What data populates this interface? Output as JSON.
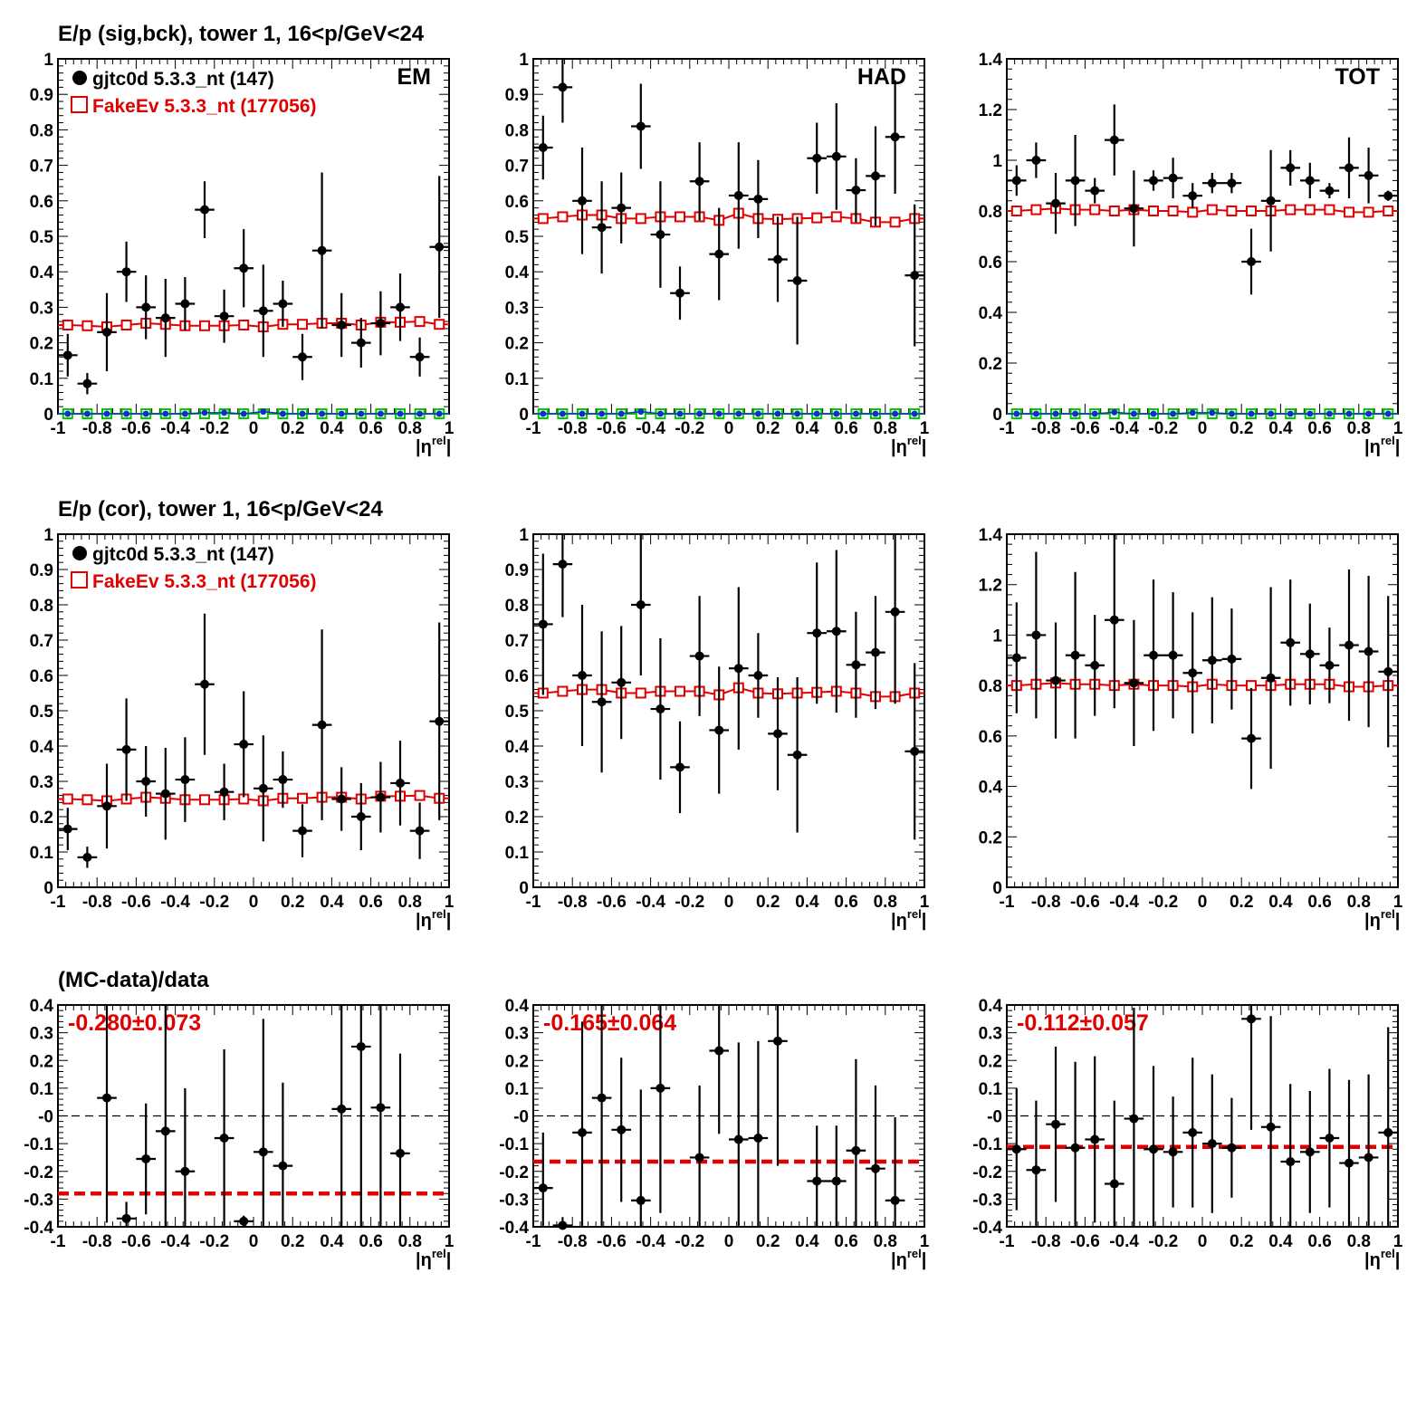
{
  "colors": {
    "data": "#000000",
    "mc": "#e00000",
    "green": "#00cc00",
    "blue": "#1030c0",
    "fit": "#e00000"
  },
  "x_ticks": [
    "-1",
    "-0.8",
    "-0.6",
    "-0.4",
    "-0.2",
    "0",
    "0.2",
    "0.4",
    "0.6",
    "0.8",
    "1"
  ],
  "xlabel_base": "|η",
  "xlabel_sup": "rel",
  "xlabel_end": "|",
  "chart_data": [
    {
      "type": "scatter",
      "row": 0,
      "col": 0,
      "title": "E/p (sig,bck), tower 1, 16<p/GeV<24",
      "corner_label": "EM",
      "legend": [
        "gjtc0d 5.3.3_nt (147)",
        "FakeEv 5.3.3_nt (177056)"
      ],
      "ylim": [
        0,
        1
      ],
      "y_ticks": [
        "0",
        "0.1",
        "0.2",
        "0.3",
        "0.4",
        "0.5",
        "0.6",
        "0.7",
        "0.8",
        "0.9",
        "1"
      ],
      "x": [
        -0.95,
        -0.85,
        -0.75,
        -0.65,
        -0.55,
        -0.45,
        -0.35,
        -0.25,
        -0.15,
        -0.05,
        0.05,
        0.15,
        0.25,
        0.35,
        0.45,
        0.55,
        0.65,
        0.75,
        0.85,
        0.95
      ],
      "data": [
        0.165,
        0.085,
        0.23,
        0.4,
        0.3,
        0.27,
        0.31,
        0.575,
        0.275,
        0.41,
        0.29,
        0.31,
        0.16,
        0.46,
        0.25,
        0.2,
        0.255,
        0.3,
        0.16,
        0.47
      ],
      "data_err": [
        0.06,
        0.03,
        0.11,
        0.085,
        0.09,
        0.11,
        0.075,
        0.08,
        0.075,
        0.11,
        0.13,
        0.065,
        0.065,
        0.22,
        0.09,
        0.07,
        0.09,
        0.095,
        0.055,
        0.2
      ],
      "mc": [
        0.25,
        0.248,
        0.245,
        0.25,
        0.255,
        0.252,
        0.248,
        0.248,
        0.248,
        0.25,
        0.245,
        0.252,
        0.252,
        0.255,
        0.255,
        0.25,
        0.258,
        0.258,
        0.26,
        0.252
      ],
      "green": [
        0,
        0,
        0,
        0,
        0,
        0,
        0,
        0,
        0,
        0,
        0,
        0,
        0,
        0,
        0,
        0,
        0,
        0,
        0,
        0
      ],
      "blue": [
        0,
        0,
        0,
        0,
        0,
        0,
        0,
        0.003,
        0.003,
        0,
        0.006,
        0,
        0,
        0,
        0,
        0,
        0,
        0,
        0,
        0
      ]
    },
    {
      "type": "scatter",
      "row": 0,
      "col": 1,
      "corner_label": "HAD",
      "ylim": [
        0,
        1
      ],
      "y_ticks": [
        "0",
        "0.1",
        "0.2",
        "0.3",
        "0.4",
        "0.5",
        "0.6",
        "0.7",
        "0.8",
        "0.9",
        "1"
      ],
      "x": [
        -0.95,
        -0.85,
        -0.75,
        -0.65,
        -0.55,
        -0.45,
        -0.35,
        -0.25,
        -0.15,
        -0.05,
        0.05,
        0.15,
        0.25,
        0.35,
        0.45,
        0.55,
        0.65,
        0.75,
        0.85,
        0.95
      ],
      "data": [
        0.75,
        0.92,
        0.6,
        0.525,
        0.58,
        0.81,
        0.505,
        0.34,
        0.655,
        0.45,
        0.615,
        0.605,
        0.435,
        0.375,
        0.72,
        0.725,
        0.63,
        0.67,
        0.78,
        0.39
      ],
      "data_err": [
        0.09,
        0.1,
        0.15,
        0.13,
        0.1,
        0.12,
        0.15,
        0.075,
        0.11,
        0.13,
        0.15,
        0.11,
        0.12,
        0.18,
        0.1,
        0.15,
        0.09,
        0.14,
        0.16,
        0.2
      ],
      "mc": [
        0.55,
        0.555,
        0.56,
        0.56,
        0.55,
        0.55,
        0.555,
        0.555,
        0.555,
        0.545,
        0.565,
        0.55,
        0.548,
        0.55,
        0.552,
        0.555,
        0.55,
        0.54,
        0.54,
        0.55
      ],
      "green": [
        0,
        0,
        0,
        0,
        0,
        0,
        0,
        0,
        0,
        0,
        0,
        0,
        0,
        0,
        0,
        0,
        0,
        0,
        0,
        0
      ],
      "blue": [
        0,
        0,
        0,
        0,
        0,
        0.006,
        0,
        0,
        0,
        0,
        0,
        0,
        0,
        0,
        0,
        0,
        0,
        0,
        0,
        0
      ]
    },
    {
      "type": "scatter",
      "row": 0,
      "col": 2,
      "corner_label": "TOT",
      "ylim": [
        0,
        1.4
      ],
      "y_ticks": [
        "0",
        "0.2",
        "0.4",
        "0.6",
        "0.8",
        "1",
        "1.2",
        "1.4"
      ],
      "x": [
        -0.95,
        -0.85,
        -0.75,
        -0.65,
        -0.55,
        -0.45,
        -0.35,
        -0.25,
        -0.15,
        -0.05,
        0.05,
        0.15,
        0.25,
        0.35,
        0.45,
        0.55,
        0.65,
        0.75,
        0.85,
        0.95
      ],
      "data": [
        0.92,
        1.0,
        0.83,
        0.92,
        0.88,
        1.08,
        0.81,
        0.92,
        0.93,
        0.86,
        0.91,
        0.91,
        0.6,
        0.84,
        0.97,
        0.92,
        0.88,
        0.97,
        0.94,
        0.86
      ],
      "data_err": [
        0.06,
        0.07,
        0.12,
        0.18,
        0.05,
        0.14,
        0.15,
        0.04,
        0.08,
        0.05,
        0.04,
        0.04,
        0.13,
        0.2,
        0.07,
        0.07,
        0.03,
        0.12,
        0.11,
        0.02
      ],
      "mc": [
        0.8,
        0.805,
        0.81,
        0.805,
        0.805,
        0.8,
        0.805,
        0.8,
        0.8,
        0.795,
        0.805,
        0.8,
        0.8,
        0.8,
        0.805,
        0.805,
        0.805,
        0.795,
        0.795,
        0.8
      ],
      "green": [
        0,
        0,
        0,
        0,
        0,
        0,
        0,
        0,
        0,
        0,
        0,
        0,
        0,
        0,
        0,
        0,
        0,
        0,
        0,
        0
      ],
      "blue": [
        0,
        0,
        0,
        0,
        0,
        0.006,
        0,
        0,
        0,
        0.004,
        0.004,
        0,
        0,
        0,
        0,
        0,
        0,
        0,
        0,
        0
      ]
    },
    {
      "type": "scatter",
      "row": 1,
      "col": 0,
      "title": "E/p (cor), tower 1, 16<p/GeV<24",
      "legend": [
        "gjtc0d 5.3.3_nt (147)",
        "FakeEv 5.3.3_nt (177056)"
      ],
      "ylim": [
        0,
        1
      ],
      "y_ticks": [
        "0",
        "0.1",
        "0.2",
        "0.3",
        "0.4",
        "0.5",
        "0.6",
        "0.7",
        "0.8",
        "0.9",
        "1"
      ],
      "x": [
        -0.95,
        -0.85,
        -0.75,
        -0.65,
        -0.55,
        -0.45,
        -0.35,
        -0.25,
        -0.15,
        -0.05,
        0.05,
        0.15,
        0.25,
        0.35,
        0.45,
        0.55,
        0.65,
        0.75,
        0.85,
        0.95
      ],
      "data": [
        0.165,
        0.085,
        0.23,
        0.39,
        0.3,
        0.265,
        0.305,
        0.575,
        0.27,
        0.405,
        0.28,
        0.305,
        0.16,
        0.46,
        0.25,
        0.2,
        0.255,
        0.295,
        0.16,
        0.47
      ],
      "data_err": [
        0.06,
        0.03,
        0.12,
        0.145,
        0.1,
        0.13,
        0.12,
        0.2,
        0.08,
        0.15,
        0.15,
        0.08,
        0.075,
        0.27,
        0.09,
        0.095,
        0.1,
        0.12,
        0.08,
        0.28
      ],
      "mc": [
        0.25,
        0.248,
        0.245,
        0.25,
        0.255,
        0.252,
        0.248,
        0.248,
        0.248,
        0.25,
        0.245,
        0.252,
        0.252,
        0.255,
        0.255,
        0.25,
        0.258,
        0.258,
        0.26,
        0.252
      ]
    },
    {
      "type": "scatter",
      "row": 1,
      "col": 1,
      "ylim": [
        0,
        1
      ],
      "y_ticks": [
        "0",
        "0.1",
        "0.2",
        "0.3",
        "0.4",
        "0.5",
        "0.6",
        "0.7",
        "0.8",
        "0.9",
        "1"
      ],
      "x": [
        -0.95,
        -0.85,
        -0.75,
        -0.65,
        -0.55,
        -0.45,
        -0.35,
        -0.25,
        -0.15,
        -0.05,
        0.05,
        0.15,
        0.25,
        0.35,
        0.45,
        0.55,
        0.65,
        0.75,
        0.85,
        0.95
      ],
      "data": [
        0.745,
        0.915,
        0.6,
        0.525,
        0.58,
        0.8,
        0.505,
        0.34,
        0.655,
        0.445,
        0.62,
        0.6,
        0.435,
        0.375,
        0.72,
        0.725,
        0.63,
        0.665,
        0.78,
        0.385
      ],
      "data_err": [
        0.2,
        0.15,
        0.2,
        0.2,
        0.16,
        0.2,
        0.2,
        0.13,
        0.17,
        0.18,
        0.23,
        0.12,
        0.16,
        0.22,
        0.2,
        0.23,
        0.15,
        0.16,
        0.26,
        0.25
      ],
      "mc": [
        0.55,
        0.555,
        0.56,
        0.56,
        0.55,
        0.55,
        0.555,
        0.555,
        0.555,
        0.545,
        0.565,
        0.55,
        0.548,
        0.55,
        0.552,
        0.555,
        0.55,
        0.54,
        0.54,
        0.55
      ]
    },
    {
      "type": "scatter",
      "row": 1,
      "col": 2,
      "ylim": [
        0,
        1.4
      ],
      "y_ticks": [
        "0",
        "0.2",
        "0.4",
        "0.6",
        "0.8",
        "1",
        "1.2",
        "1.4"
      ],
      "x": [
        -0.95,
        -0.85,
        -0.75,
        -0.65,
        -0.55,
        -0.45,
        -0.35,
        -0.25,
        -0.15,
        -0.05,
        0.05,
        0.15,
        0.25,
        0.35,
        0.45,
        0.55,
        0.65,
        0.75,
        0.85,
        0.95
      ],
      "data": [
        0.91,
        1.0,
        0.82,
        0.92,
        0.88,
        1.06,
        0.81,
        0.92,
        0.92,
        0.85,
        0.9,
        0.905,
        0.59,
        0.83,
        0.97,
        0.925,
        0.88,
        0.96,
        0.935,
        0.855
      ],
      "data_err": [
        0.22,
        0.33,
        0.23,
        0.33,
        0.2,
        0.35,
        0.25,
        0.3,
        0.25,
        0.24,
        0.25,
        0.2,
        0.2,
        0.36,
        0.25,
        0.2,
        0.15,
        0.3,
        0.3,
        0.3
      ],
      "mc": [
        0.8,
        0.805,
        0.81,
        0.805,
        0.805,
        0.8,
        0.805,
        0.8,
        0.8,
        0.795,
        0.805,
        0.8,
        0.8,
        0.8,
        0.805,
        0.805,
        0.805,
        0.795,
        0.795,
        0.8
      ]
    },
    {
      "type": "scatter",
      "row": 2,
      "col": 0,
      "title": "(MC-data)/data",
      "fit_label": "-0.280±0.073",
      "fit": -0.28,
      "ylim": [
        -0.4,
        0.4
      ],
      "y_ticks": [
        "-0.4",
        "-0.3",
        "-0.2",
        "-0.1",
        "-0",
        "0.1",
        "0.2",
        "0.3",
        "0.4"
      ],
      "x": [
        -0.75,
        -0.65,
        -0.55,
        -0.45,
        -0.35,
        -0.15,
        -0.05,
        0.05,
        0.15,
        0.45,
        0.55,
        0.65,
        0.75
      ],
      "data": [
        0.065,
        -0.37,
        -0.155,
        -0.055,
        -0.2,
        -0.08,
        -0.38,
        -0.13,
        -0.18,
        0.025,
        0.25,
        0.03,
        -0.135
      ],
      "data_err": [
        0.45,
        0.06,
        0.2,
        0.5,
        0.3,
        0.32,
        0.02,
        0.48,
        0.3,
        0.45,
        0.65,
        0.45,
        0.36
      ]
    },
    {
      "type": "scatter",
      "row": 2,
      "col": 1,
      "fit_label": "-0.165±0.064",
      "fit": -0.165,
      "ylim": [
        -0.4,
        0.4
      ],
      "y_ticks": [
        "-0.4",
        "-0.3",
        "-0.2",
        "-0.1",
        "-0",
        "0.1",
        "0.2",
        "0.3",
        "0.4"
      ],
      "x": [
        -0.95,
        -0.85,
        -0.75,
        -0.65,
        -0.55,
        -0.45,
        -0.35,
        -0.15,
        -0.05,
        0.05,
        0.15,
        0.25,
        0.45,
        0.55,
        0.65,
        0.75,
        0.85
      ],
      "data": [
        -0.26,
        -0.395,
        -0.06,
        0.065,
        -0.05,
        -0.305,
        0.1,
        -0.15,
        0.235,
        -0.085,
        -0.08,
        0.27,
        -0.235,
        -0.235,
        -0.125,
        -0.19,
        -0.305
      ],
      "data_err": [
        0.2,
        0.03,
        0.4,
        0.5,
        0.26,
        0.4,
        0.45,
        0.26,
        0.3,
        0.35,
        0.35,
        0.45,
        0.2,
        0.2,
        0.33,
        0.3,
        0.3
      ]
    },
    {
      "type": "scatter",
      "row": 2,
      "col": 2,
      "fit_label": "-0.112±0.057",
      "fit": -0.112,
      "ylim": [
        -0.4,
        0.4
      ],
      "y_ticks": [
        "-0.4",
        "-0.3",
        "-0.2",
        "-0.1",
        "-0",
        "0.1",
        "0.2",
        "0.3",
        "0.4"
      ],
      "x": [
        -0.95,
        -0.85,
        -0.75,
        -0.65,
        -0.55,
        -0.45,
        -0.35,
        -0.25,
        -0.15,
        -0.05,
        0.05,
        0.15,
        0.25,
        0.35,
        0.45,
        0.55,
        0.65,
        0.75,
        0.85,
        0.95
      ],
      "data": [
        -0.12,
        -0.195,
        -0.03,
        -0.115,
        -0.085,
        -0.245,
        -0.01,
        -0.12,
        -0.13,
        -0.06,
        -0.1,
        -0.115,
        0.35,
        -0.04,
        -0.165,
        -0.13,
        -0.08,
        -0.17,
        -0.15,
        -0.06
      ],
      "data_err": [
        0.22,
        0.25,
        0.28,
        0.31,
        0.3,
        0.3,
        0.4,
        0.3,
        0.2,
        0.27,
        0.25,
        0.18,
        0.4,
        0.4,
        0.28,
        0.22,
        0.25,
        0.3,
        0.3,
        0.38
      ]
    }
  ]
}
